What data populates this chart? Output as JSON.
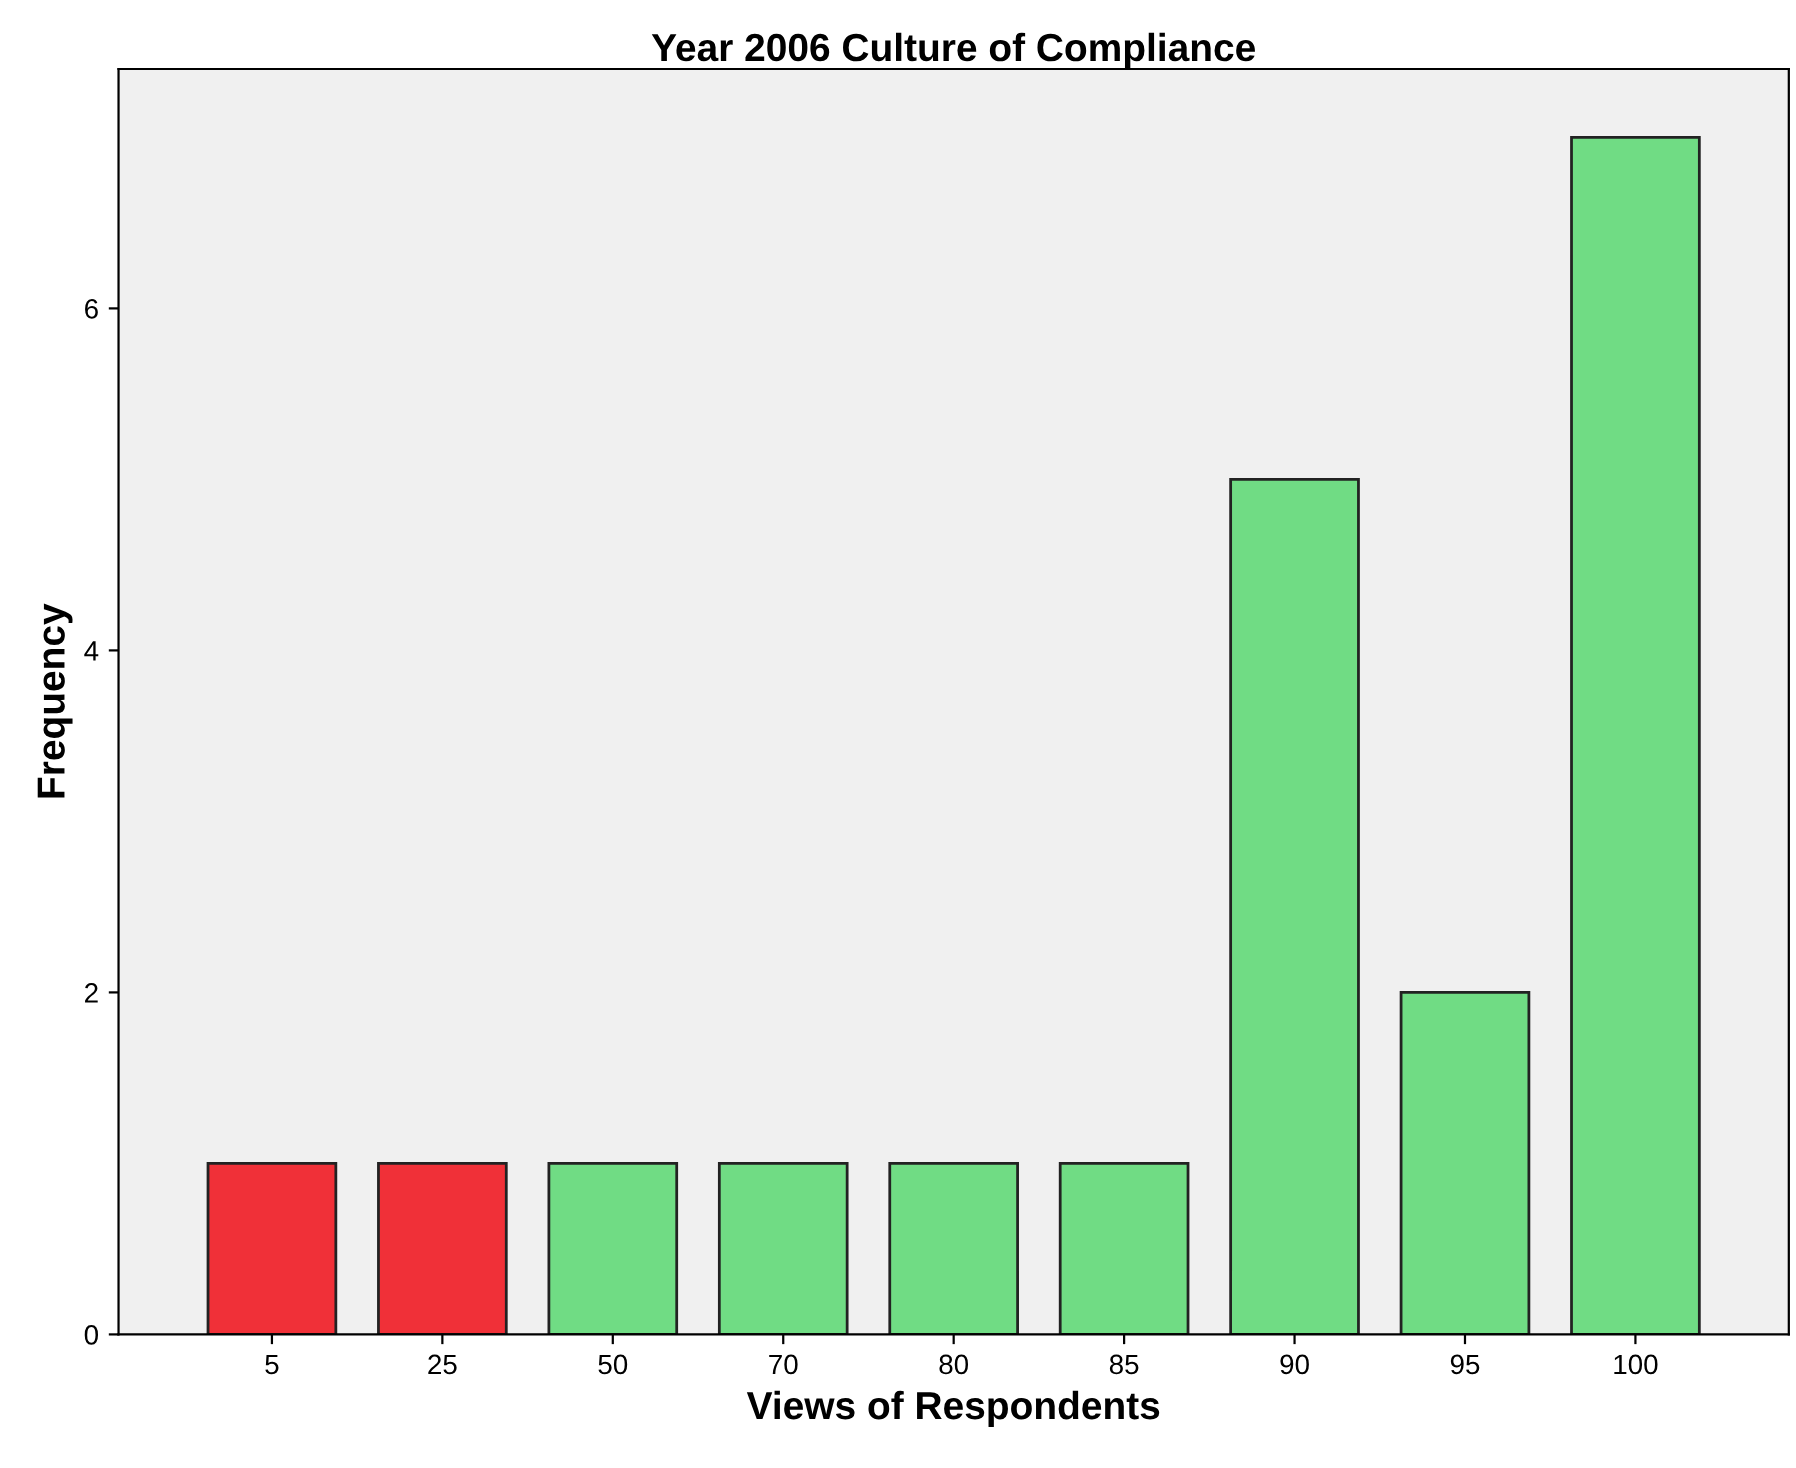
{
  "chart_data": {
    "type": "bar",
    "title": "Year 2006 Culture of Compliance",
    "xlabel": "Views of Respondents",
    "ylabel": "Frequency",
    "categories": [
      "5",
      "25",
      "50",
      "70",
      "80",
      "85",
      "90",
      "95",
      "100"
    ],
    "values": [
      1,
      1,
      1,
      1,
      1,
      1,
      5,
      2,
      7
    ],
    "colors": [
      "#f03038",
      "#f03038",
      "#70dc84",
      "#70dc84",
      "#70dc84",
      "#70dc84",
      "#70dc84",
      "#70dc84",
      "#70dc84"
    ],
    "ylim": [
      0,
      7.4
    ],
    "yticks": [
      0,
      2,
      4,
      6
    ],
    "grid": false,
    "legend": false
  }
}
